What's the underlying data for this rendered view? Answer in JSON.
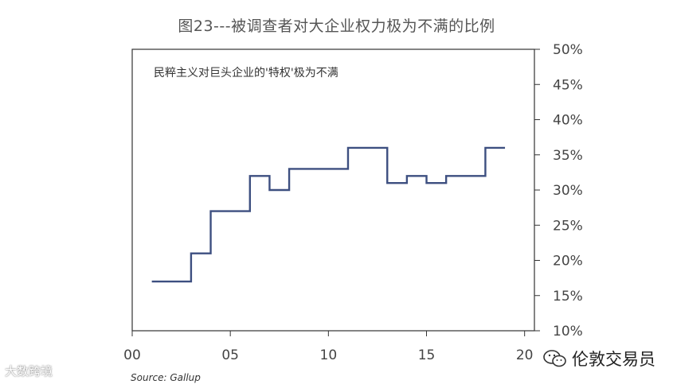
{
  "title": "图23---被调查者对大企业权力极为不满的比例",
  "chart_data": {
    "type": "line",
    "step": true,
    "annotation": "民粹主义对巨头企业的'特权'极为不满",
    "source": "Source: Gallup",
    "xlim": [
      0,
      20.5
    ],
    "ylim": [
      10,
      50
    ],
    "x_ticks": [
      0,
      5,
      10,
      15,
      20
    ],
    "x_tick_labels": [
      "00",
      "05",
      "10",
      "15",
      "20"
    ],
    "y_ticks": [
      10,
      15,
      20,
      25,
      30,
      35,
      40,
      45,
      50
    ],
    "y_tick_labels": [
      "10%",
      "15%",
      "20%",
      "25%",
      "30%",
      "35%",
      "40%",
      "45%",
      "50%"
    ],
    "x": [
      1,
      3,
      4,
      6,
      7,
      8,
      11,
      13,
      14,
      15,
      16,
      18,
      19
    ],
    "y": [
      17,
      21,
      27,
      32,
      30,
      33,
      36,
      31,
      32,
      31,
      32,
      36,
      36
    ],
    "line_color": "#3d4f80"
  },
  "watermark_left": "大数跨境",
  "watermark_right": "伦敦交易员"
}
